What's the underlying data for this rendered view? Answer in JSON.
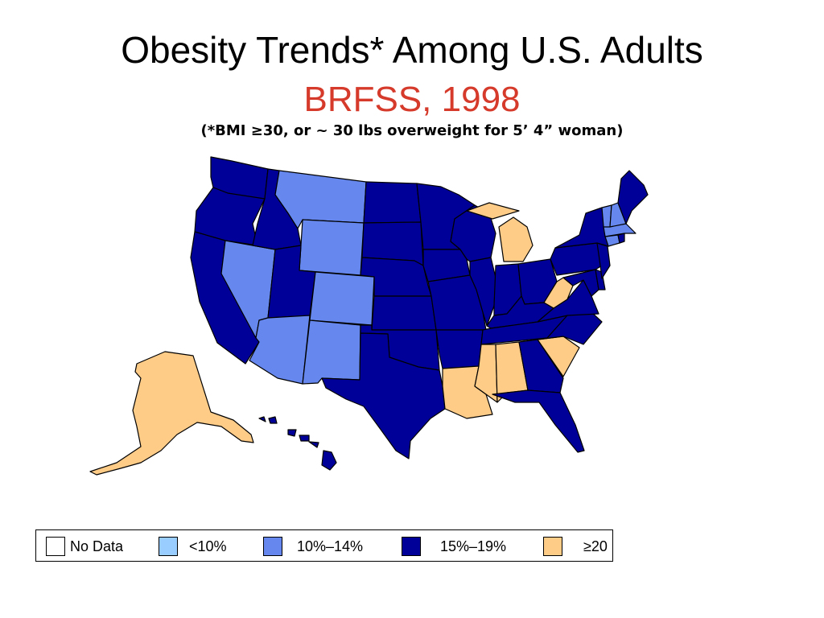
{
  "title": "Obesity Trends* Among U.S. Adults",
  "subtitle": "BRFSS, 1998",
  "note": "(*BMI ≥30, or ~ 30 lbs overweight for 5’ 4” woman)",
  "colors": {
    "no_data": "#ffffff",
    "lt10": "#99ccff",
    "c10_14": "#6688ee",
    "c15_19": "#000099",
    "ge20": "#ffcc88"
  },
  "legend": [
    {
      "label": "No Data",
      "color_key": "no_data"
    },
    {
      "label": "<10%",
      "color_key": "lt10"
    },
    {
      "label": "10%–14%",
      "color_key": "c10_14"
    },
    {
      "label": "15%–19%",
      "color_key": "c15_19"
    },
    {
      "label": "≥20",
      "color_key": "ge20"
    }
  ],
  "categories": {
    "c10_14": [
      "MT",
      "WY",
      "NV",
      "CO",
      "AZ",
      "NM",
      "VT",
      "NH",
      "MA",
      "CT"
    ],
    "ge20": [
      "AK",
      "MI",
      "WV",
      "SC",
      "MS",
      "AL",
      "LA"
    ],
    "c15_19": [
      "WA",
      "OR",
      "CA",
      "ID",
      "UT",
      "ND",
      "SD",
      "NE",
      "KS",
      "OK",
      "TX",
      "MN",
      "IA",
      "MO",
      "AR",
      "WI",
      "IL",
      "IN",
      "OH",
      "KY",
      "TN",
      "GA",
      "FL",
      "NC",
      "VA",
      "MD",
      "DE",
      "NJ",
      "PA",
      "NY",
      "ME",
      "RI",
      "HI"
    ]
  }
}
